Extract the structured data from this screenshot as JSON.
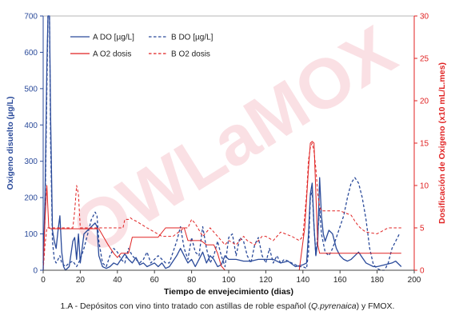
{
  "watermark": "OWLaMOX",
  "caption": {
    "before": "1.A - Depósitos con vino tinto tratado con astillas de roble español (",
    "italic": "Q.pyrenaica",
    "after": ") y FMOX."
  },
  "colors": {
    "blue": "#2a4a9a",
    "red": "#e02222",
    "watermark": "#f6c8cf"
  },
  "chart_data": {
    "type": "line",
    "xlabel": "Tiempo de envejecimiento (dias)",
    "ylabel": "Oxigeno disuelto (µg/L)",
    "y2label": "Dosificación de  Oxigeno (x10 mL/L.mes)",
    "xlim": [
      0,
      200
    ],
    "ylim": [
      0,
      700
    ],
    "y2lim": [
      0,
      30
    ],
    "xticks": [
      "0",
      "20",
      "40",
      "60",
      "80",
      "100",
      "120",
      "140",
      "160",
      "180",
      "200"
    ],
    "yticks": [
      "0",
      "100",
      "200",
      "300",
      "400",
      "500",
      "600",
      "700"
    ],
    "y2ticks": [
      "0",
      "5",
      "10",
      "15",
      "20",
      "25",
      "30"
    ],
    "legend": {
      "placement": "top-center"
    },
    "series": [
      {
        "name": "A DO [µg/L]",
        "axis": "left",
        "style": "solid",
        "color": "#2a4a9a",
        "points": [
          [
            0,
            0
          ],
          [
            1,
            200
          ],
          [
            2,
            560
          ],
          [
            2.6,
            700
          ],
          [
            3.4,
            700
          ],
          [
            4,
            420
          ],
          [
            5,
            110
          ],
          [
            6,
            80
          ],
          [
            7,
            60
          ],
          [
            8,
            110
          ],
          [
            9,
            150
          ],
          [
            10,
            50
          ],
          [
            11,
            10
          ],
          [
            12,
            0
          ],
          [
            14,
            10
          ],
          [
            16,
            80
          ],
          [
            17,
            90
          ],
          [
            18,
            30
          ],
          [
            19,
            100
          ],
          [
            20,
            20
          ],
          [
            22,
            100
          ],
          [
            24,
            110
          ],
          [
            26,
            120
          ],
          [
            28,
            130
          ],
          [
            29,
            120
          ],
          [
            30,
            40
          ],
          [
            32,
            10
          ],
          [
            34,
            5
          ],
          [
            36,
            10
          ],
          [
            38,
            20
          ],
          [
            40,
            15
          ],
          [
            42,
            30
          ],
          [
            44,
            45
          ],
          [
            46,
            30
          ],
          [
            48,
            20
          ],
          [
            50,
            35
          ],
          [
            52,
            15
          ],
          [
            54,
            20
          ],
          [
            56,
            10
          ],
          [
            58,
            15
          ],
          [
            60,
            20
          ],
          [
            62,
            10
          ],
          [
            64,
            20
          ],
          [
            66,
            5
          ],
          [
            68,
            10
          ],
          [
            70,
            25
          ],
          [
            72,
            40
          ],
          [
            74,
            60
          ],
          [
            76,
            40
          ],
          [
            78,
            20
          ],
          [
            80,
            30
          ],
          [
            82,
            10
          ],
          [
            84,
            30
          ],
          [
            86,
            50
          ],
          [
            88,
            20
          ],
          [
            90,
            40
          ],
          [
            92,
            30
          ],
          [
            94,
            10
          ],
          [
            96,
            15
          ],
          [
            98,
            40
          ],
          [
            100,
            30
          ],
          [
            104,
            30
          ],
          [
            108,
            25
          ],
          [
            112,
            25
          ],
          [
            116,
            30
          ],
          [
            120,
            30
          ],
          [
            124,
            30
          ],
          [
            128,
            20
          ],
          [
            132,
            25
          ],
          [
            136,
            10
          ],
          [
            140,
            15
          ],
          [
            142,
            20
          ],
          [
            143,
            100
          ],
          [
            144,
            210
          ],
          [
            145,
            240
          ],
          [
            146,
            120
          ],
          [
            147,
            40
          ],
          [
            148,
            80
          ],
          [
            149,
            255
          ],
          [
            150,
            150
          ],
          [
            151,
            100
          ],
          [
            152,
            80
          ],
          [
            154,
            110
          ],
          [
            156,
            100
          ],
          [
            158,
            60
          ],
          [
            160,
            40
          ],
          [
            162,
            30
          ],
          [
            164,
            25
          ],
          [
            166,
            30
          ],
          [
            168,
            40
          ],
          [
            170,
            50
          ],
          [
            172,
            35
          ],
          [
            174,
            20
          ],
          [
            176,
            15
          ],
          [
            178,
            10
          ],
          [
            180,
            10
          ],
          [
            184,
            15
          ],
          [
            188,
            20
          ],
          [
            190,
            25
          ],
          [
            193,
            10
          ]
        ]
      },
      {
        "name": "B DO [µg/L]",
        "axis": "left",
        "style": "dashed",
        "color": "#2a4a9a",
        "points": [
          [
            0,
            20
          ],
          [
            1,
            150
          ],
          [
            2,
            500
          ],
          [
            2.6,
            700
          ],
          [
            3.4,
            700
          ],
          [
            4,
            350
          ],
          [
            5,
            80
          ],
          [
            6,
            30
          ],
          [
            7,
            20
          ],
          [
            8,
            30
          ],
          [
            9,
            40
          ],
          [
            10,
            20
          ],
          [
            12,
            10
          ],
          [
            14,
            20
          ],
          [
            16,
            25
          ],
          [
            18,
            10
          ],
          [
            20,
            30
          ],
          [
            22,
            60
          ],
          [
            24,
            100
          ],
          [
            26,
            140
          ],
          [
            28,
            160
          ],
          [
            29,
            150
          ],
          [
            30,
            80
          ],
          [
            32,
            20
          ],
          [
            34,
            10
          ],
          [
            36,
            40
          ],
          [
            38,
            60
          ],
          [
            40,
            50
          ],
          [
            42,
            30
          ],
          [
            44,
            20
          ],
          [
            46,
            60
          ],
          [
            48,
            40
          ],
          [
            50,
            30
          ],
          [
            52,
            20
          ],
          [
            54,
            30
          ],
          [
            56,
            50
          ],
          [
            58,
            20
          ],
          [
            60,
            30
          ],
          [
            62,
            40
          ],
          [
            64,
            30
          ],
          [
            66,
            20
          ],
          [
            68,
            20
          ],
          [
            70,
            50
          ],
          [
            72,
            80
          ],
          [
            74,
            120
          ],
          [
            76,
            60
          ],
          [
            78,
            30
          ],
          [
            80,
            90
          ],
          [
            82,
            50
          ],
          [
            84,
            40
          ],
          [
            86,
            120
          ],
          [
            88,
            60
          ],
          [
            90,
            20
          ],
          [
            92,
            40
          ],
          [
            94,
            80
          ],
          [
            96,
            40
          ],
          [
            98,
            10
          ],
          [
            100,
            90
          ],
          [
            102,
            100
          ],
          [
            104,
            40
          ],
          [
            106,
            90
          ],
          [
            108,
            80
          ],
          [
            110,
            40
          ],
          [
            112,
            20
          ],
          [
            114,
            70
          ],
          [
            116,
            90
          ],
          [
            118,
            40
          ],
          [
            120,
            20
          ],
          [
            122,
            60
          ],
          [
            124,
            20
          ],
          [
            126,
            40
          ],
          [
            128,
            20
          ],
          [
            130,
            30
          ],
          [
            132,
            25
          ],
          [
            134,
            20
          ],
          [
            136,
            15
          ],
          [
            138,
            10
          ],
          [
            140,
            10
          ],
          [
            142,
            5
          ],
          [
            143,
            50
          ],
          [
            144,
            200
          ],
          [
            145,
            220
          ],
          [
            146,
            120
          ],
          [
            147,
            40
          ],
          [
            148,
            100
          ],
          [
            149,
            170
          ],
          [
            150,
            100
          ],
          [
            152,
            50
          ],
          [
            154,
            40
          ],
          [
            156,
            60
          ],
          [
            158,
            90
          ],
          [
            160,
            120
          ],
          [
            162,
            150
          ],
          [
            164,
            200
          ],
          [
            166,
            240
          ],
          [
            168,
            255
          ],
          [
            170,
            240
          ],
          [
            172,
            200
          ],
          [
            174,
            140
          ],
          [
            176,
            60
          ],
          [
            178,
            15
          ],
          [
            180,
            5
          ],
          [
            182,
            0
          ],
          [
            184,
            0
          ],
          [
            186,
            20
          ],
          [
            188,
            60
          ],
          [
            190,
            80
          ],
          [
            192,
            100
          ]
        ]
      },
      {
        "name": "A O2 dosis",
        "axis": "right",
        "style": "solid",
        "color": "#e02222",
        "points": [
          [
            0,
            0
          ],
          [
            1,
            6
          ],
          [
            2,
            10
          ],
          [
            3,
            5
          ],
          [
            4,
            4.9
          ],
          [
            10,
            4.9
          ],
          [
            12,
            4.9
          ],
          [
            15,
            4.9
          ],
          [
            22,
            4.9
          ],
          [
            30,
            4.9
          ],
          [
            35,
            3
          ],
          [
            38,
            2
          ],
          [
            40,
            1.5
          ],
          [
            42,
            2
          ],
          [
            44,
            2
          ],
          [
            46,
            2
          ],
          [
            48,
            3.9
          ],
          [
            50,
            3.9
          ],
          [
            56,
            3.9
          ],
          [
            62,
            3.9
          ],
          [
            66,
            5
          ],
          [
            70,
            5
          ],
          [
            76,
            5
          ],
          [
            78,
            3.5
          ],
          [
            82,
            3.5
          ],
          [
            85,
            3.5
          ],
          [
            88,
            3
          ],
          [
            90,
            3
          ],
          [
            92,
            3
          ],
          [
            94,
            2
          ],
          [
            96,
            0.5
          ],
          [
            98,
            0
          ],
          [
            100,
            0
          ],
          [
            108,
            0
          ],
          [
            118,
            0
          ],
          [
            128,
            0
          ],
          [
            138,
            0
          ],
          [
            141,
            5
          ],
          [
            143,
            12
          ],
          [
            144,
            15
          ],
          [
            145,
            15.2
          ],
          [
            146,
            15
          ],
          [
            147,
            9
          ],
          [
            148,
            3
          ],
          [
            149,
            2
          ],
          [
            150,
            2
          ],
          [
            160,
            2
          ],
          [
            170,
            2
          ],
          [
            180,
            2
          ],
          [
            190,
            2
          ],
          [
            193,
            2
          ]
        ]
      },
      {
        "name": "B O2 dosis",
        "axis": "right",
        "style": "dashed",
        "color": "#e02222",
        "points": [
          [
            0,
            0
          ],
          [
            1,
            3
          ],
          [
            2,
            5
          ],
          [
            3,
            5
          ],
          [
            10,
            5
          ],
          [
            16,
            5
          ],
          [
            17,
            7
          ],
          [
            18,
            10
          ],
          [
            19,
            9
          ],
          [
            20,
            5
          ],
          [
            30,
            5
          ],
          [
            40,
            5
          ],
          [
            43,
            5
          ],
          [
            44,
            6
          ],
          [
            46,
            6
          ],
          [
            47,
            6.2
          ],
          [
            48,
            6
          ],
          [
            50,
            5.8
          ],
          [
            56,
            5
          ],
          [
            60,
            4.5
          ],
          [
            64,
            4
          ],
          [
            70,
            4
          ],
          [
            76,
            5
          ],
          [
            78,
            5
          ],
          [
            80,
            6
          ],
          [
            82,
            5.5
          ],
          [
            86,
            4
          ],
          [
            90,
            5
          ],
          [
            94,
            4
          ],
          [
            98,
            3
          ],
          [
            100,
            3.5
          ],
          [
            104,
            3
          ],
          [
            108,
            4
          ],
          [
            110,
            3.5
          ],
          [
            114,
            3
          ],
          [
            118,
            4
          ],
          [
            120,
            4
          ],
          [
            124,
            3.5
          ],
          [
            128,
            4.5
          ],
          [
            134,
            4
          ],
          [
            138,
            3.5
          ],
          [
            140,
            4
          ],
          [
            142,
            9
          ],
          [
            143,
            13
          ],
          [
            144,
            14.5
          ],
          [
            145,
            15
          ],
          [
            146,
            14
          ],
          [
            147,
            12
          ],
          [
            148,
            9
          ],
          [
            149,
            7.5
          ],
          [
            150,
            7
          ],
          [
            160,
            7
          ],
          [
            166,
            6.5
          ],
          [
            168,
            5.8
          ],
          [
            170,
            5.2
          ],
          [
            172,
            4.8
          ],
          [
            174,
            4.5
          ],
          [
            180,
            4.3
          ],
          [
            186,
            5
          ],
          [
            190,
            5
          ],
          [
            193,
            5
          ]
        ]
      }
    ]
  }
}
